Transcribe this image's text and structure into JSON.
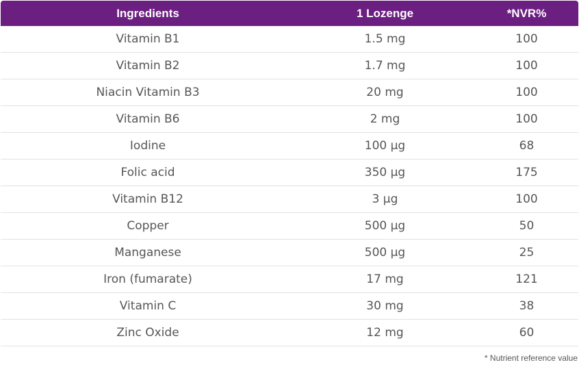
{
  "table": {
    "headers": [
      "Ingredients",
      "1 Lozenge",
      "*NVR%"
    ],
    "rows": [
      [
        "Vitamin B1",
        "1.5 mg",
        "100"
      ],
      [
        "Vitamin B2",
        "1.7 mg",
        "100"
      ],
      [
        "Niacin Vitamin B3",
        "20 mg",
        "100"
      ],
      [
        "Vitamin B6",
        "2 mg",
        "100"
      ],
      [
        "Iodine",
        "100 µg",
        "68"
      ],
      [
        "Folic acid",
        "350 µg",
        "175"
      ],
      [
        "Vitamin B12",
        "3 µg",
        "100"
      ],
      [
        "Copper",
        "500 µg",
        "50"
      ],
      [
        "Manganese",
        "500 µg",
        "25"
      ],
      [
        "Iron (fumarate)",
        "17 mg",
        "121"
      ],
      [
        "Vitamin C",
        "30 mg",
        "38"
      ],
      [
        "Zinc Oxide",
        "12 mg",
        "60"
      ]
    ]
  },
  "footnote": "* Nutrient reference value",
  "colors": {
    "header_background": "#6b1f80",
    "header_text": "#ffffff",
    "cell_text": "#555555",
    "row_divider": "#e2e2e2"
  }
}
